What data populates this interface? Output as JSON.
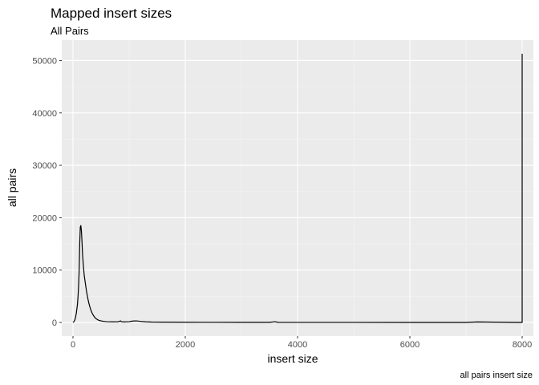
{
  "chart_data": {
    "type": "line",
    "title": "Mapped insert sizes",
    "subtitle": "All Pairs",
    "xlabel": "insert size",
    "ylabel": "all pairs",
    "caption": "all pairs insert size",
    "xlim": [
      -200,
      8200
    ],
    "ylim": [
      -2600,
      53900
    ],
    "xticks": [
      0,
      2000,
      4000,
      6000,
      8000
    ],
    "xtick_labels": [
      "0",
      "2000",
      "4000",
      "6000",
      "8000"
    ],
    "yticks": [
      0,
      10000,
      20000,
      30000,
      40000,
      50000
    ],
    "ytick_labels": [
      "0",
      "10000",
      "20000",
      "30000",
      "40000",
      "50000"
    ],
    "grid": true,
    "series": [
      {
        "x": [
          0,
          20,
          40,
          60,
          80,
          90,
          100,
          110,
          120,
          130,
          140,
          150,
          160,
          170,
          180,
          190,
          200,
          220,
          240,
          260,
          280,
          300,
          320,
          340,
          360,
          380,
          400,
          450,
          500,
          550,
          600,
          700,
          800,
          850,
          860,
          900,
          1000,
          1050,
          1100,
          1150,
          1200,
          1300,
          1400,
          1600,
          2000,
          2500,
          3000,
          3500,
          3600,
          3650,
          4000,
          5000,
          6000,
          7000,
          7200,
          7990,
          8000,
          8000
        ],
        "y": [
          0,
          200,
          700,
          1800,
          3500,
          5000,
          7000,
          10000,
          15000,
          18200,
          18500,
          17500,
          15500,
          13000,
          11500,
          10200,
          9000,
          7500,
          6000,
          4800,
          3800,
          3000,
          2300,
          1800,
          1400,
          1100,
          800,
          450,
          300,
          200,
          150,
          120,
          130,
          300,
          150,
          100,
          150,
          250,
          300,
          280,
          200,
          120,
          80,
          60,
          40,
          30,
          25,
          20,
          150,
          20,
          15,
          10,
          8,
          5,
          100,
          0,
          0,
          51300
        ]
      }
    ]
  }
}
